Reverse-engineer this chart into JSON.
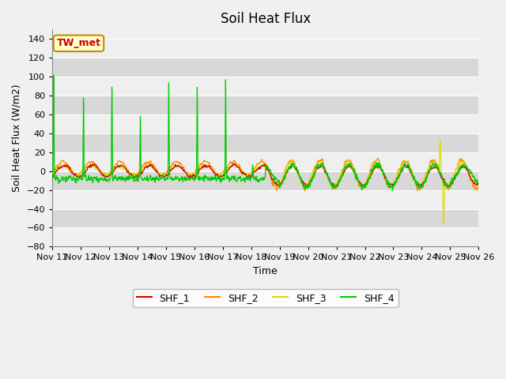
{
  "title": "Soil Heat Flux",
  "ylabel": "Soil Heat Flux (W/m2)",
  "xlabel": "Time",
  "ylim": [
    -80,
    150
  ],
  "yticks": [
    -80,
    -60,
    -40,
    -20,
    0,
    20,
    40,
    60,
    80,
    100,
    120,
    140
  ],
  "series_colors": {
    "SHF_1": "#cc0000",
    "SHF_2": "#ff8800",
    "SHF_3": "#dddd00",
    "SHF_4": "#00cc00"
  },
  "legend_labels": [
    "SHF_1",
    "SHF_2",
    "SHF_3",
    "SHF_4"
  ],
  "annotation_text": "TW_met",
  "annotation_bg": "#ffffcc",
  "annotation_border": "#cc8800",
  "plot_bg_dark": "#e0e0e0",
  "plot_bg_light": "#f0f0f0",
  "title_fontsize": 12,
  "axis_label_fontsize": 9,
  "tick_fontsize": 8,
  "n_days": 15,
  "n_per_day": 144,
  "start_day": 11
}
